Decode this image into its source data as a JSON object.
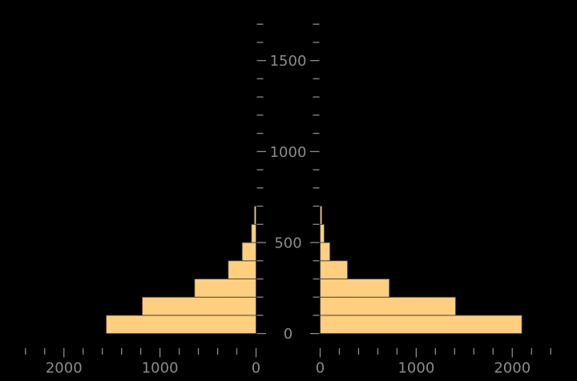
{
  "window": {
    "background": "#000000"
  },
  "colors": {
    "bar_fill": "#FDCF7F",
    "bar_edge": "#463F33",
    "axis": "#8B8B8B",
    "tick_label": "#8B8B8B"
  },
  "chart_data": {
    "type": "bar",
    "subtype": "population-pyramid",
    "orientation": "horizontal-mirrored",
    "title": "",
    "xlabel": "",
    "ylabel": "",
    "grid": false,
    "legend": false,
    "bin_edges": [
      0,
      100,
      200,
      300,
      400,
      500,
      600,
      700
    ],
    "series": [
      {
        "name": "left",
        "values": [
          1560,
          1185,
          640,
          290,
          145,
          48,
          18
        ]
      },
      {
        "name": "right",
        "values": [
          2100,
          1410,
          720,
          285,
          102,
          42,
          18
        ]
      }
    ],
    "x_axis": {
      "min": 0,
      "max": 2400,
      "minor_step": 200,
      "major_ticks": [
        0,
        1000,
        2000
      ],
      "tick_labels": [
        "0",
        "1000",
        "2000"
      ],
      "left_side_direction": "right-to-left"
    },
    "y_axis": {
      "min": 0,
      "max": 1700,
      "minor_step": 100,
      "major_ticks": [
        0,
        500,
        1000,
        1500
      ],
      "tick_labels": [
        "0",
        "500",
        "1000",
        "1500"
      ],
      "position": "center-shared"
    }
  }
}
